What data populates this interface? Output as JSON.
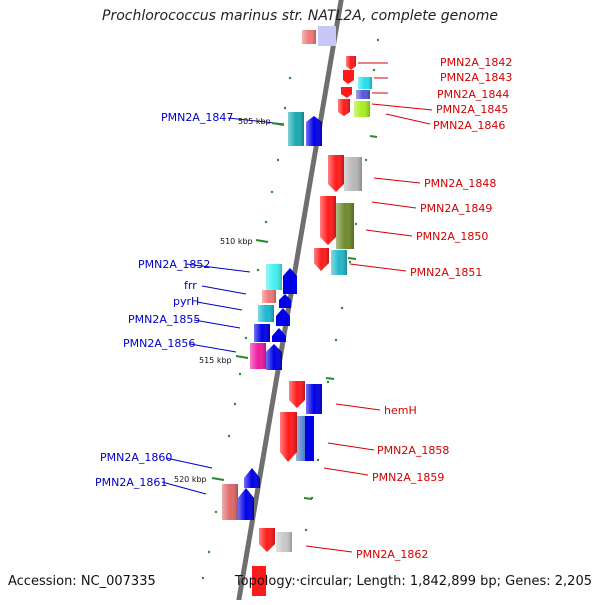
{
  "title": "Prochlorococcus marinus str. NATL2A, complete genome",
  "footer": {
    "accession": "Accession: NC_007335",
    "summary": "Topology: circular; Length: 1,842,899 bp; Genes: 2,205"
  },
  "colors": {
    "backbone": "#6f6f6f",
    "reverse_label": "#d40000",
    "forward_label": "#0000c8",
    "tick": "#2a8a2a"
  },
  "scale_ticks": [
    {
      "id": "505",
      "label": "505 kbp"
    },
    {
      "id": "510",
      "label": "510 kbp"
    },
    {
      "id": "515",
      "label": "515 kbp"
    },
    {
      "id": "520",
      "label": "520 kbp"
    }
  ],
  "reverse_genes": [
    {
      "id": "1842",
      "name": "PMN2A_1842",
      "color": "#ff1a1a"
    },
    {
      "id": "1843",
      "name": "PMN2A_1843",
      "color": "#22e0f0"
    },
    {
      "id": "1844",
      "name": "PMN2A_1844",
      "color": "#5858d8"
    },
    {
      "id": "1845",
      "name": "PMN2A_1845",
      "color": "#a6f01e"
    },
    {
      "id": "1846",
      "name": "PMN2A_1846",
      "color": "#ff1a1a"
    },
    {
      "id": "1848",
      "name": "PMN2A_1848",
      "color": "#b8b8b8"
    },
    {
      "id": "1849",
      "name": "PMN2A_1849",
      "color": "#6e8a2a"
    },
    {
      "id": "1850",
      "name": "PMN2A_1850",
      "color": "#ff1a1a"
    },
    {
      "id": "1851",
      "name": "PMN2A_1851",
      "color": "#22b8c8"
    },
    {
      "id": "hemH",
      "name": "hemH",
      "color": "#ff1a1a"
    },
    {
      "id": "1858",
      "name": "PMN2A_1858",
      "color": "#ff1a1a"
    },
    {
      "id": "1859",
      "name": "PMN2A_1859",
      "color": "#ff1a1a"
    },
    {
      "id": "1862",
      "name": "PMN2A_1862",
      "color": "#ff1a1a"
    }
  ],
  "forward_genes": [
    {
      "id": "1847",
      "name": "PMN2A_1847",
      "color": "#1aa8b0"
    },
    {
      "id": "1852",
      "name": "PMN2A_1852",
      "color": "#44f0f0"
    },
    {
      "id": "frr",
      "name": "frr",
      "color": "#f07878"
    },
    {
      "id": "pyrH",
      "name": "pyrH",
      "color": "#1ab8d0"
    },
    {
      "id": "1855",
      "name": "PMN2A_1855",
      "color": "#0000e8"
    },
    {
      "id": "1856",
      "name": "PMN2A_1856",
      "color": "#f01aa0"
    },
    {
      "id": "1860",
      "name": "PMN2A_1860",
      "color": "#0000e8"
    },
    {
      "id": "1861",
      "name": "PMN2A_1861",
      "color": "#e06868"
    }
  ]
}
